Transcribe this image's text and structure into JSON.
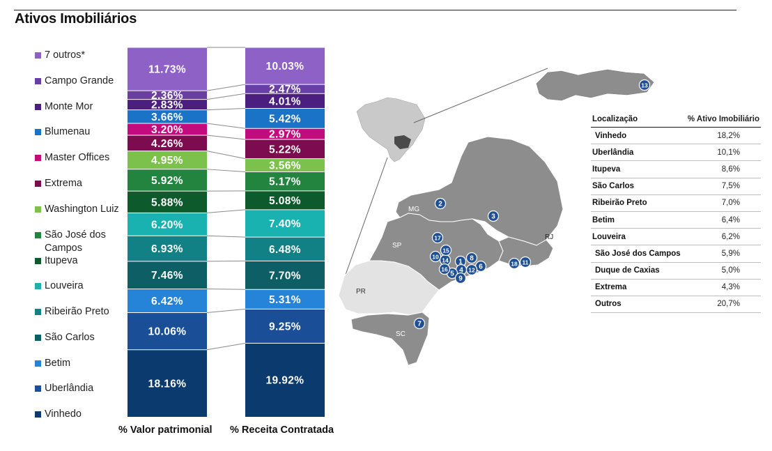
{
  "page": {
    "title": "Ativos Imobiliários"
  },
  "chart_data": {
    "type": "bar",
    "stacked": true,
    "normalized": true,
    "categories": [
      "% Valor patrimonial",
      "% Receita Contratada"
    ],
    "series": [
      {
        "name": "Vinhedo",
        "color": "#0b3a6e",
        "values": [
          18.16,
          19.92
        ],
        "labels": [
          "18.16%",
          "19.92%"
        ]
      },
      {
        "name": "Uberlândia",
        "color": "#1a4f97",
        "values": [
          10.06,
          9.25
        ],
        "labels": [
          "10.06%",
          "9.25%"
        ]
      },
      {
        "name": "Betim",
        "color": "#2583d8",
        "values": [
          6.42,
          5.31
        ],
        "labels": [
          "6.42%",
          "5.31%"
        ]
      },
      {
        "name": "São Carlos",
        "color": "#0e5e65",
        "values": [
          7.46,
          7.7
        ],
        "labels": [
          "7.46%",
          "7.70%"
        ]
      },
      {
        "name": "Ribeirão Preto",
        "color": "#128186",
        "values": [
          6.93,
          6.48
        ],
        "labels": [
          "6.93%",
          "6.48%"
        ]
      },
      {
        "name": "Louveira",
        "color": "#1ab1b1",
        "values": [
          6.2,
          7.4
        ],
        "labels": [
          "6.20%",
          "7.40%"
        ]
      },
      {
        "name": "Itupeva",
        "color": "#0d5b2c",
        "values": [
          5.88,
          5.08
        ],
        "labels": [
          "5.88%",
          "5.08%"
        ]
      },
      {
        "name": "São José dos Campos",
        "color": "#22843f",
        "values": [
          5.92,
          5.17
        ],
        "labels": [
          "5.92%",
          "5.17%"
        ]
      },
      {
        "name": "Washington Luiz",
        "color": "#7bc14b",
        "values": [
          4.95,
          3.56
        ],
        "labels": [
          "4.95%",
          "3.56%"
        ]
      },
      {
        "name": "Extrema",
        "color": "#7d0b4f",
        "values": [
          4.26,
          5.22
        ],
        "labels": [
          "4.26%",
          "5.22%"
        ]
      },
      {
        "name": "Master Offices",
        "color": "#c30b7f",
        "values": [
          3.2,
          2.97
        ],
        "labels": [
          "3.20%",
          "2.97%"
        ]
      },
      {
        "name": "Blumenau",
        "color": "#1a73c6",
        "values": [
          3.66,
          5.42
        ],
        "labels": [
          "3.66%",
          "5.42%"
        ]
      },
      {
        "name": "Monte Mor",
        "color": "#4a1f80",
        "values": [
          2.83,
          4.01
        ],
        "labels": [
          "2.83%",
          "4.01%"
        ]
      },
      {
        "name": "Campo Grande",
        "color": "#6a3fa3",
        "values": [
          2.36,
          2.47
        ],
        "labels": [
          "2.36%",
          "2.47%"
        ]
      },
      {
        "name": "7 outros*",
        "color": "#8e61c6",
        "values": [
          11.73,
          10.03
        ],
        "labels": [
          "11.73%",
          "10.03%"
        ]
      }
    ],
    "ylim": [
      0,
      100
    ],
    "grid": false,
    "legend_position": "left"
  },
  "map": {
    "state_labels": [
      "MG",
      "SP",
      "RJ",
      "PR",
      "SC"
    ],
    "markers": [
      "1",
      "2",
      "3",
      "4",
      "5",
      "6",
      "7",
      "8",
      "9",
      "10",
      "11",
      "12",
      "13",
      "14",
      "15",
      "16",
      "17",
      "18"
    ],
    "marker_color": "#1f4f95"
  },
  "table": {
    "headers": [
      "Localização",
      "% Ativo Imobiliário"
    ],
    "rows": [
      [
        "Vinhedo",
        "18,2%"
      ],
      [
        "Uberlândia",
        "10,1%"
      ],
      [
        "Itupeva",
        "8,6%"
      ],
      [
        "São Carlos",
        "7,5%"
      ],
      [
        "Ribeirão Preto",
        "7,0%"
      ],
      [
        "Betim",
        "6,4%"
      ],
      [
        "Louveira",
        "6,2%"
      ],
      [
        "São José dos Campos",
        "5,9%"
      ],
      [
        "Duque de Caxias",
        "5,0%"
      ],
      [
        "Extrema",
        "4,3%"
      ],
      [
        "Outros",
        "20,7%"
      ]
    ]
  }
}
